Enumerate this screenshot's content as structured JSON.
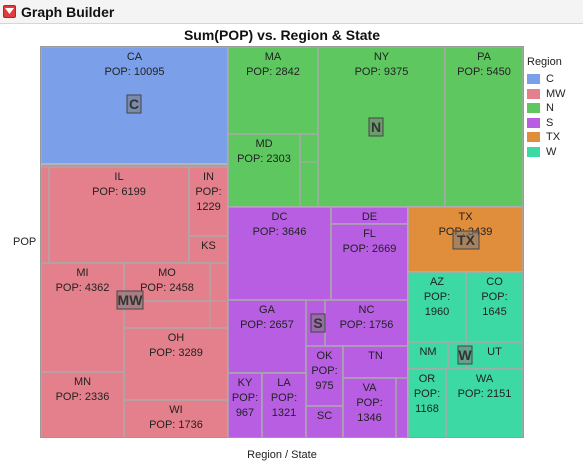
{
  "app": {
    "title": "Graph Builder",
    "menu_icon": "red-triangle-menu-icon"
  },
  "legend": {
    "title": "Region"
  },
  "chart_data": {
    "type": "treemap",
    "title": "Sum(POP) vs. Region & State",
    "xlabel": "Region / State",
    "ylabel": "POP",
    "value_label": "POP",
    "legend_placement": "right",
    "regions": [
      {
        "name": "C",
        "color": "#7b9fe8",
        "states": [
          {
            "name": "CA",
            "value": 10095,
            "label": true
          }
        ]
      },
      {
        "name": "MW",
        "color": "#e3808b",
        "states": [
          {
            "name": "IL",
            "value": 6199,
            "label": true
          },
          {
            "name": "IN",
            "value": 1229,
            "label": true
          },
          {
            "name": "KS",
            "value": null,
            "label": true
          },
          {
            "name": "MI",
            "value": 4362,
            "label": true
          },
          {
            "name": "MO",
            "value": 2458,
            "label": true
          },
          {
            "name": "OH",
            "value": 3289,
            "label": true
          },
          {
            "name": "MN",
            "value": 2336,
            "label": true
          },
          {
            "name": "WI",
            "value": 1736,
            "label": true
          }
        ]
      },
      {
        "name": "N",
        "color": "#5ec760",
        "states": [
          {
            "name": "MA",
            "value": 2842,
            "label": true
          },
          {
            "name": "NY",
            "value": 9375,
            "label": true
          },
          {
            "name": "PA",
            "value": 5450,
            "label": true
          },
          {
            "name": "MD",
            "value": 2303,
            "label": true
          }
        ]
      },
      {
        "name": "S",
        "color": "#b85ee3",
        "states": [
          {
            "name": "DC",
            "value": 3646,
            "label": true
          },
          {
            "name": "DE",
            "value": null,
            "label": true
          },
          {
            "name": "FL",
            "value": 2669,
            "label": true
          },
          {
            "name": "GA",
            "value": 2657,
            "label": true
          },
          {
            "name": "NC",
            "value": 1756,
            "label": true
          },
          {
            "name": "OK",
            "value": 975,
            "label": true
          },
          {
            "name": "TN",
            "value": null,
            "label": true
          },
          {
            "name": "KY",
            "value": 967,
            "label": true
          },
          {
            "name": "LA",
            "value": 1321,
            "label": true
          },
          {
            "name": "SC",
            "value": null,
            "label": true
          },
          {
            "name": "VA",
            "value": 1346,
            "label": true
          }
        ]
      },
      {
        "name": "TX",
        "color": "#e08e3c",
        "states": [
          {
            "name": "TX",
            "value": 3439,
            "label": true
          }
        ]
      },
      {
        "name": "W",
        "color": "#3dd9a4",
        "states": [
          {
            "name": "AZ",
            "value": 1960,
            "label": true
          },
          {
            "name": "CO",
            "value": 1645,
            "label": true
          },
          {
            "name": "NM",
            "value": null,
            "label": true
          },
          {
            "name": "UT",
            "value": null,
            "label": true
          },
          {
            "name": "OR",
            "value": 1168,
            "label": true
          },
          {
            "name": "WA",
            "value": 2151,
            "label": true
          }
        ]
      }
    ]
  }
}
